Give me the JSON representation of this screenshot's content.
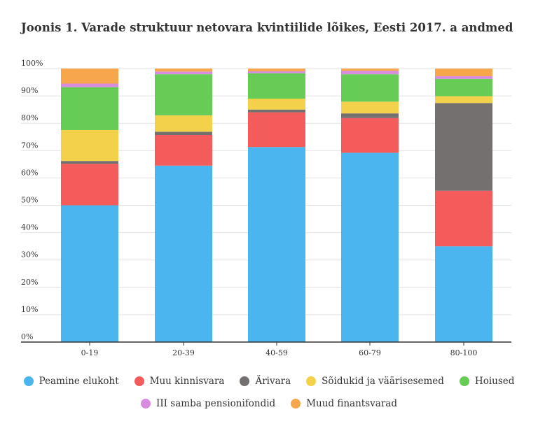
{
  "title": "Joonis 1. Varade struktuur netovara kvintiilide lõikes, Eesti 2017. a andmed",
  "chart_data": {
    "type": "bar",
    "stacked": true,
    "categories": [
      "0-19",
      "20-39",
      "40-59",
      "60-79",
      "80-100"
    ],
    "y_ticks": [
      "0%",
      "10%",
      "20%",
      "30%",
      "40%",
      "50%",
      "60%",
      "70%",
      "80%",
      "90%",
      "100%"
    ],
    "ylim": [
      0,
      100
    ],
    "grid": true,
    "legend_position": "bottom",
    "series": [
      {
        "name": "Peamine elukoht",
        "color": "#4bb5f0",
        "values": [
          50.0,
          64.5,
          71.3,
          69.2,
          35.0
        ]
      },
      {
        "name": "Muu kinnisvara",
        "color": "#f45b5b",
        "values": [
          15.2,
          11.2,
          12.7,
          12.7,
          20.3
        ]
      },
      {
        "name": "Ärivara",
        "color": "#757070",
        "values": [
          1.0,
          1.2,
          1.0,
          1.7,
          32.1
        ]
      },
      {
        "name": "Sõidukid ja väärisesemed",
        "color": "#f4d14b",
        "values": [
          11.3,
          6.0,
          4.0,
          4.3,
          2.5
        ]
      },
      {
        "name": "Hoiused",
        "color": "#66cc55",
        "values": [
          15.7,
          15.0,
          9.3,
          10.0,
          6.3
        ]
      },
      {
        "name": "III samba pensionifondid",
        "color": "#d88ce0",
        "values": [
          1.3,
          1.0,
          0.7,
          1.3,
          1.0
        ]
      },
      {
        "name": "Muud finantsvarad",
        "color": "#f7a64b",
        "values": [
          5.5,
          1.1,
          1.0,
          0.8,
          2.8
        ]
      }
    ]
  }
}
